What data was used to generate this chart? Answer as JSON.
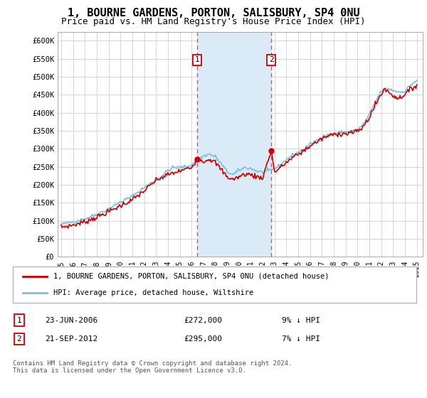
{
  "title": "1, BOURNE GARDENS, PORTON, SALISBURY, SP4 0NU",
  "subtitle": "Price paid vs. HM Land Registry's House Price Index (HPI)",
  "title_fontsize": 11,
  "subtitle_fontsize": 9,
  "ylabel_ticks": [
    "£0",
    "£50K",
    "£100K",
    "£150K",
    "£200K",
    "£250K",
    "£300K",
    "£350K",
    "£400K",
    "£450K",
    "£500K",
    "£550K",
    "£600K"
  ],
  "ytick_values": [
    0,
    50000,
    100000,
    150000,
    200000,
    250000,
    300000,
    350000,
    400000,
    450000,
    500000,
    550000,
    600000
  ],
  "ylim": [
    0,
    625000
  ],
  "xlim_start": 1994.7,
  "xlim_end": 2025.5,
  "xticks": [
    1995,
    1996,
    1997,
    1998,
    1999,
    2000,
    2001,
    2002,
    2003,
    2004,
    2005,
    2006,
    2007,
    2008,
    2009,
    2010,
    2011,
    2012,
    2013,
    2014,
    2015,
    2016,
    2017,
    2018,
    2019,
    2020,
    2021,
    2022,
    2023,
    2024,
    2025
  ],
  "hpi_color": "#7bbde0",
  "price_color": "#cc0000",
  "dot_color": "#cc0000",
  "sale1_x": 2006.47,
  "sale1_y": 272000,
  "sale1_label": "1",
  "sale1_date": "23-JUN-2006",
  "sale1_price": "£272,000",
  "sale1_hpi": "9% ↓ HPI",
  "sale2_x": 2012.72,
  "sale2_y": 295000,
  "sale2_label": "2",
  "sale2_date": "21-SEP-2012",
  "sale2_price": "£295,000",
  "sale2_hpi": "7% ↓ HPI",
  "shade_color": "#daeaf7",
  "vline_color": "#e05050",
  "background_color": "#ffffff",
  "grid_color": "#d0d0d0",
  "legend_line1": "1, BOURNE GARDENS, PORTON, SALISBURY, SP4 0NU (detached house)",
  "legend_line2": "HPI: Average price, detached house, Wiltshire",
  "footer": "Contains HM Land Registry data © Crown copyright and database right 2024.\nThis data is licensed under the Open Government Licence v3.0."
}
